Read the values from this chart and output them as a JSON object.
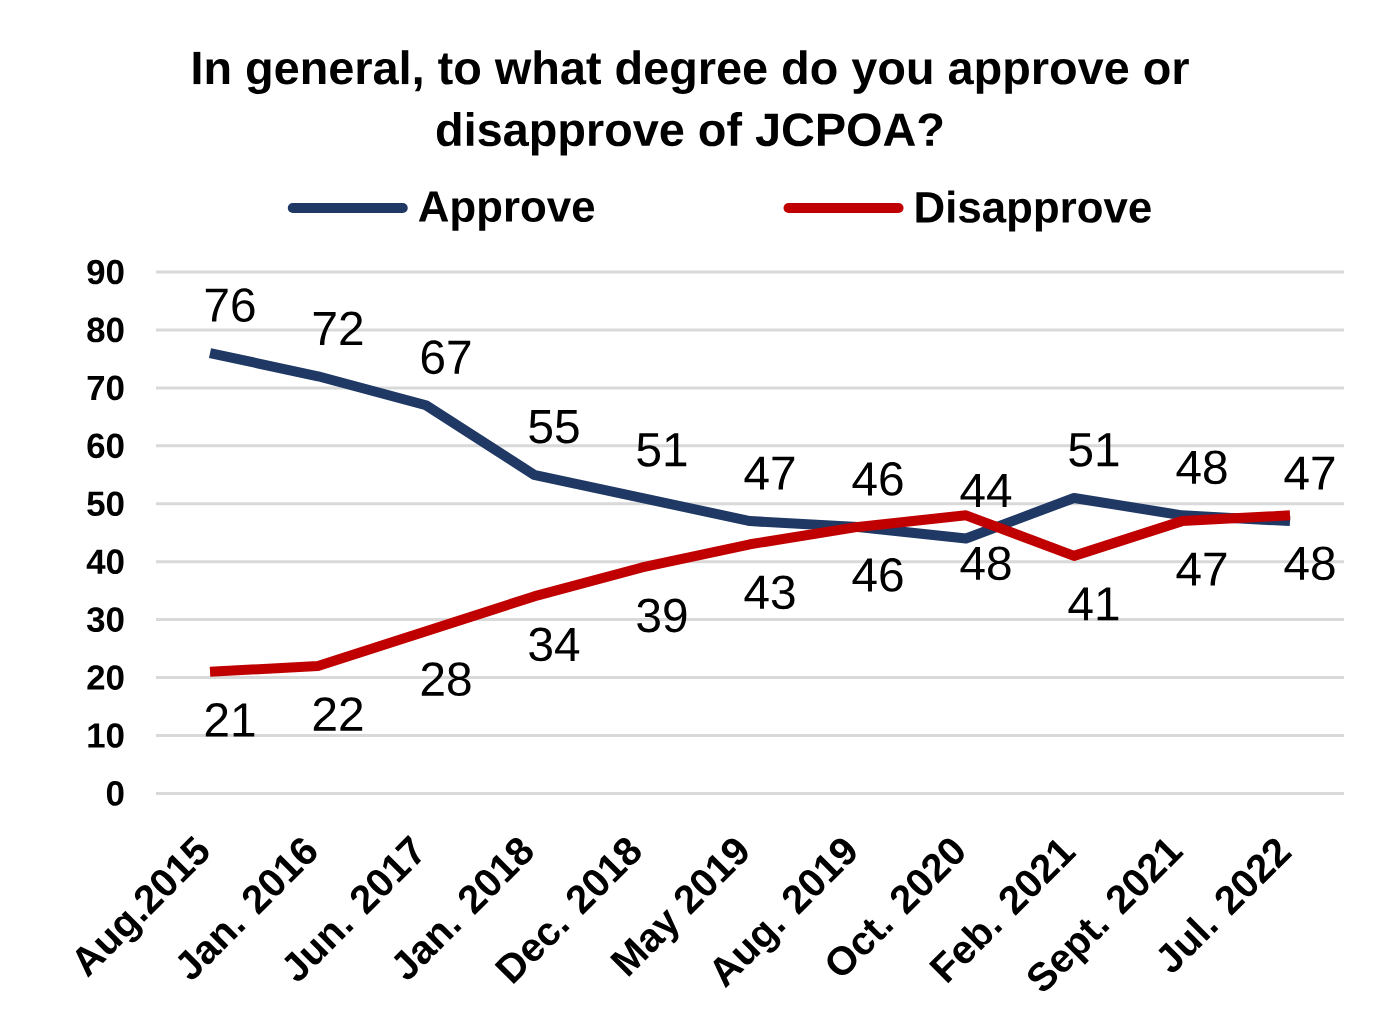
{
  "chart_data": {
    "type": "line",
    "title": "In general, to what degree do you approve or disapprove of JCPOA?",
    "categories": [
      "Aug.2015",
      "Jan. 2016",
      "Jun. 2017",
      "Jan. 2018",
      "Dec. 2018",
      "May 2019",
      "Aug. 2019",
      "Oct. 2020",
      "Feb. 2021",
      "Sept. 2021",
      "Jul. 2022"
    ],
    "series": [
      {
        "name": "Approve",
        "color": "#1f3864",
        "values": [
          76,
          72,
          67,
          55,
          51,
          47,
          46,
          44,
          51,
          48,
          47
        ]
      },
      {
        "name": "Disapprove",
        "color": "#c00000",
        "values": [
          21,
          22,
          28,
          34,
          39,
          43,
          46,
          48,
          41,
          47,
          48
        ]
      }
    ],
    "ylim": [
      0,
      90
    ],
    "yticks": [
      0,
      10,
      20,
      30,
      40,
      50,
      60,
      70,
      80,
      90
    ],
    "grid": "y",
    "legend": "top",
    "data_labels": true
  }
}
